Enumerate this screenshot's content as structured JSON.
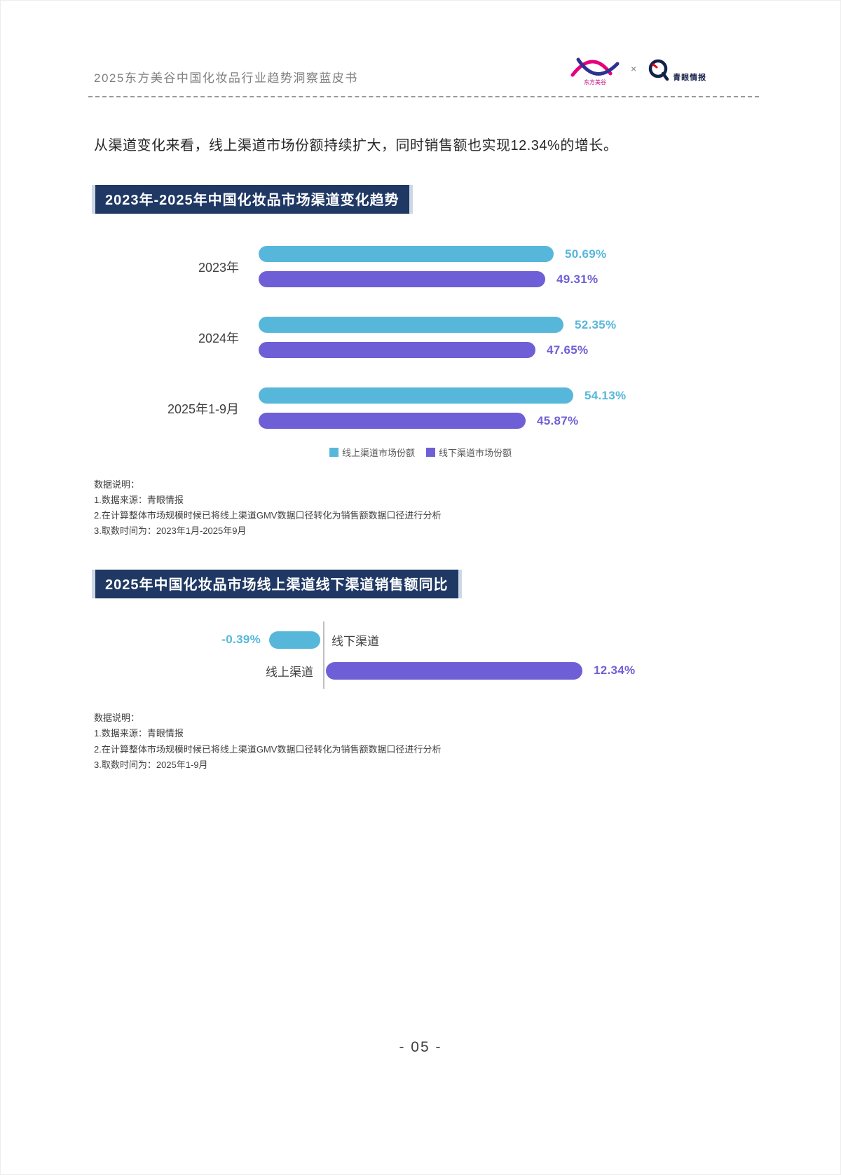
{
  "header": {
    "title": "2025东方美谷中国化妆品行业趋势洞察蓝皮书",
    "logo_separator": "×",
    "obv_logo_caption": "东方美谷",
    "qingyan_label": "青眼情报"
  },
  "intro_text": "从渠道变化来看，线上渠道市场份额持续扩大，同时销售额也实现12.34%的增长。",
  "chart1": {
    "title": "2023年-2025年中国化妆品市场渠道变化趋势",
    "notes": [
      "数据说明：",
      "1.数据来源：青眼情报",
      "2.在计算整体市场规模时候已将线上渠道GMV数据口径转化为销售额数据口径进行分析",
      "3.取数时间为：2023年1月-2025年9月"
    ]
  },
  "chart2": {
    "title": "2025年中国化妆品市场线上渠道线下渠道销售额同比",
    "notes": [
      "数据说明：",
      "1.数据来源：青眼情报",
      "2.在计算整体市场规模时候已将线上渠道GMV数据口径转化为销售额数据口径进行分析",
      "3.取数时间为：2025年1-9月"
    ]
  },
  "colors": {
    "online_teal": "#57B7DA",
    "offline_purple": "#6F5FD6",
    "title_bg_navy": "#1F3864",
    "axis_gray": "#BFBFBF"
  },
  "footer": {
    "page_number": "- 05 -"
  },
  "chart_data": [
    {
      "type": "bar",
      "orientation": "horizontal",
      "title": "2023年-2025年中国化妆品市场渠道变化趋势",
      "categories": [
        "2023年",
        "2024年",
        "2025年1-9月"
      ],
      "series": [
        {
          "name": "线上渠道市场份额",
          "color": "#57B7DA",
          "values": [
            50.69,
            52.35,
            54.13
          ],
          "labels": [
            "50.69%",
            "52.35%",
            "54.13%"
          ]
        },
        {
          "name": "线下渠道市场份额",
          "color": "#6F5FD6",
          "values": [
            49.31,
            47.65,
            45.87
          ],
          "labels": [
            "49.31%",
            "47.65%",
            "45.87%"
          ]
        }
      ],
      "value_suffix": "%",
      "xlim": [
        0,
        60
      ],
      "legend_position": "bottom",
      "grid": false
    },
    {
      "type": "bar",
      "orientation": "horizontal-diverging",
      "title": "2025年中国化妆品市场线上渠道线下渠道销售额同比",
      "categories": [
        "线下渠道",
        "线上渠道"
      ],
      "series": [
        {
          "name": "销售额同比",
          "values": [
            -0.39,
            12.34
          ],
          "labels": [
            "-0.39%",
            "12.34%"
          ],
          "colors": [
            "#57B7DA",
            "#6F5FD6"
          ]
        }
      ],
      "value_suffix": "%",
      "grid": false
    }
  ]
}
